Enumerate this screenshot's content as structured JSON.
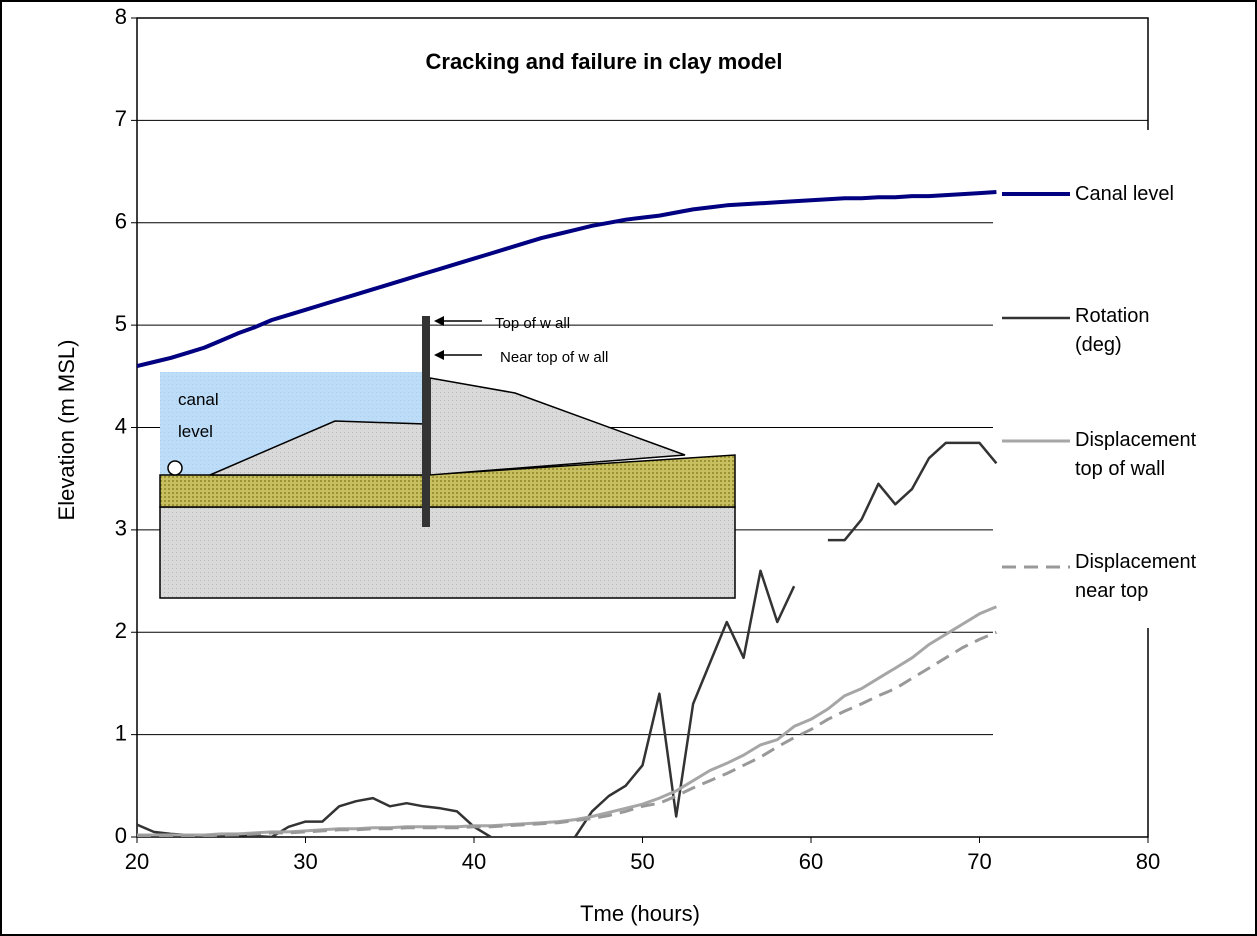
{
  "chart_data": {
    "type": "line",
    "title": "Cracking and failure in clay model",
    "x_label": "Tme (hours)",
    "y_label": "Elevation (m MSL)",
    "xlim": [
      20,
      80
    ],
    "xticks": [
      20,
      30,
      40,
      50,
      60,
      70,
      80
    ],
    "ylim": [
      0,
      8
    ],
    "yticks": [
      0,
      1,
      2,
      3,
      4,
      5,
      6,
      7,
      8
    ],
    "grid": true,
    "legend": "right",
    "annotations": [
      "canal level",
      "Top of w all",
      "Near top of w all"
    ],
    "x": [
      20,
      21,
      22,
      23,
      24,
      25,
      26,
      27,
      28,
      29,
      30,
      31,
      32,
      33,
      34,
      35,
      36,
      37,
      38,
      39,
      40,
      41,
      42,
      43,
      44,
      45,
      46,
      47,
      48,
      49,
      50,
      51,
      52,
      53,
      54,
      55,
      56,
      57,
      58,
      59,
      60,
      61,
      62,
      63,
      64,
      65,
      66,
      67,
      68,
      69,
      70,
      71
    ],
    "series": [
      {
        "name": "Canal level",
        "color": "#000080",
        "dash": "solid",
        "values": [
          4.6,
          4.64,
          4.68,
          4.73,
          4.78,
          4.85,
          4.92,
          4.98,
          5.05,
          5.1,
          5.15,
          5.2,
          5.25,
          5.3,
          5.35,
          5.4,
          5.45,
          5.5,
          5.55,
          5.6,
          5.65,
          5.7,
          5.75,
          5.8,
          5.85,
          5.89,
          5.93,
          5.97,
          6.0,
          6.03,
          6.05,
          6.07,
          6.1,
          6.13,
          6.15,
          6.17,
          6.18,
          6.19,
          6.2,
          6.21,
          6.22,
          6.23,
          6.24,
          6.24,
          6.25,
          6.25,
          6.26,
          6.26,
          6.27,
          6.28,
          6.29,
          6.3
        ]
      },
      {
        "name": "Rotation (deg)",
        "color": "#333333",
        "dash": "solid",
        "values": [
          0.12,
          0.05,
          0.03,
          0.02,
          0.01,
          0.01,
          0.02,
          0.01,
          0.0,
          0.1,
          0.15,
          0.15,
          0.3,
          0.35,
          0.38,
          0.3,
          0.33,
          0.3,
          0.28,
          0.25,
          0.1,
          0.0,
          null,
          null,
          null,
          null,
          0.0,
          0.25,
          0.4,
          0.5,
          0.7,
          1.4,
          0.2,
          1.3,
          1.7,
          2.1,
          1.75,
          2.6,
          2.1,
          2.45,
          null,
          2.9,
          2.9,
          3.1,
          3.45,
          3.25,
          3.4,
          3.7,
          3.85,
          3.85,
          3.85,
          3.65
        ]
      },
      {
        "name": "Displacement top of wall",
        "color": "#a6a6a6",
        "dash": "solid",
        "values": [
          0.02,
          0.02,
          0.02,
          0.02,
          0.02,
          0.03,
          0.03,
          0.04,
          0.05,
          0.05,
          0.06,
          0.07,
          0.08,
          0.08,
          0.09,
          0.09,
          0.1,
          0.1,
          0.1,
          0.1,
          0.11,
          0.11,
          0.12,
          0.13,
          0.14,
          0.15,
          0.17,
          0.2,
          0.24,
          0.28,
          0.32,
          0.38,
          0.45,
          0.55,
          0.65,
          0.72,
          0.8,
          0.9,
          0.95,
          1.08,
          1.15,
          1.25,
          1.38,
          1.45,
          1.55,
          1.65,
          1.75,
          1.88,
          1.98,
          2.08,
          2.18,
          2.25
        ]
      },
      {
        "name": "Displacement near top",
        "color": "#999999",
        "dash": "dashed",
        "values": [
          0.01,
          0.01,
          0.01,
          0.01,
          0.01,
          0.02,
          0.02,
          0.03,
          0.04,
          0.04,
          0.05,
          0.06,
          0.07,
          0.07,
          0.08,
          0.08,
          0.09,
          0.09,
          0.09,
          0.09,
          0.1,
          0.1,
          0.11,
          0.12,
          0.13,
          0.14,
          0.16,
          0.18,
          0.21,
          0.25,
          0.3,
          0.33,
          0.4,
          0.48,
          0.55,
          0.62,
          0.7,
          0.78,
          0.88,
          0.97,
          1.05,
          1.15,
          1.23,
          1.3,
          1.38,
          1.45,
          1.55,
          1.65,
          1.75,
          1.85,
          1.93,
          2.0
        ]
      }
    ]
  }
}
